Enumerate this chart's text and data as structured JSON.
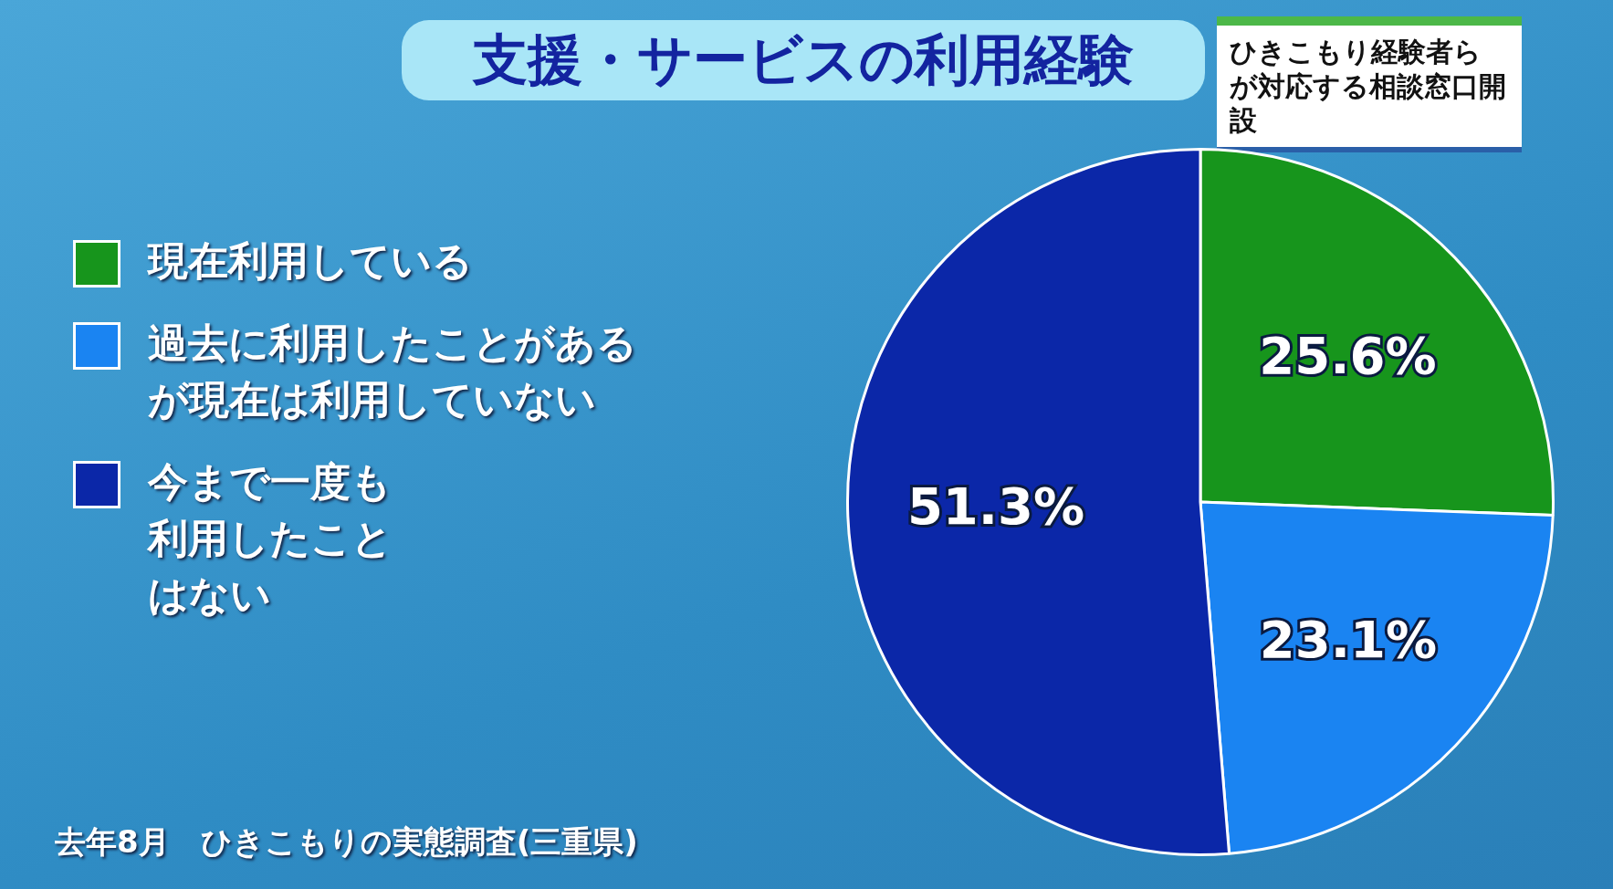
{
  "chart_data": {
    "type": "pie",
    "title": "支援・サービスの利用経験",
    "categories": [
      "現在利用している",
      "過去に利用したことがあるが現在は利用していない",
      "今まで一度も利用したことはない"
    ],
    "values": [
      25.6,
      23.1,
      51.3
    ],
    "colors": [
      "#17951c",
      "#1a84f2",
      "#0b27a8"
    ],
    "value_labels": [
      "25.6%",
      "23.1%",
      "51.3%"
    ],
    "legend": "left",
    "annotations": [
      "ひきこもり経験者らが対応する相談窓口開設",
      "去年8月　ひきこもりの実態調査(三重県)"
    ]
  }
}
